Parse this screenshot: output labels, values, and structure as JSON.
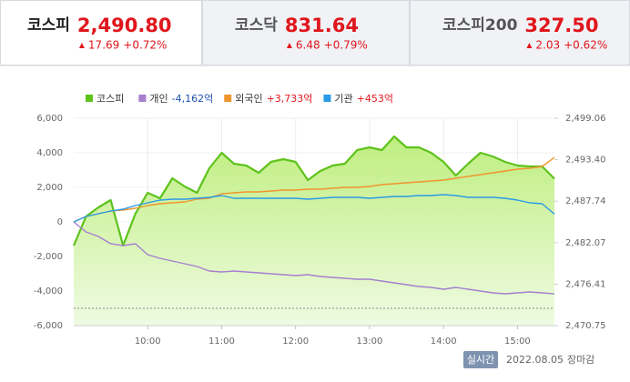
{
  "tabs": [
    {
      "name": "코스피",
      "value": "2,490.80",
      "change": "17.69",
      "rate": "+0.72%"
    },
    {
      "name": "코스닥",
      "value": "831.64",
      "change": "6.48",
      "rate": "+0.79%"
    },
    {
      "name": "코스피200",
      "value": "327.50",
      "change": "2.03",
      "rate": "+0.62%"
    }
  ],
  "chart_data": {
    "type": "line",
    "x": [
      "09:00",
      "09:10",
      "09:20",
      "09:30",
      "09:40",
      "09:50",
      "10:00",
      "10:10",
      "10:20",
      "10:30",
      "10:40",
      "10:50",
      "11:00",
      "11:10",
      "11:20",
      "11:30",
      "11:40",
      "11:50",
      "12:00",
      "12:10",
      "12:20",
      "12:30",
      "12:40",
      "12:50",
      "13:00",
      "13:10",
      "13:20",
      "13:30",
      "13:40",
      "13:50",
      "14:00",
      "14:10",
      "14:20",
      "14:30",
      "14:40",
      "14:50",
      "15:00",
      "15:10",
      "15:20",
      "15:30"
    ],
    "xlim": [
      "09:00",
      "15:30"
    ],
    "xticks": [
      "10:00",
      "11:00",
      "12:00",
      "13:00",
      "14:00",
      "15:00"
    ],
    "ylim": [
      -6000,
      6000
    ],
    "yticks": [
      {
        "value": -6000,
        "label": "-6,000"
      },
      {
        "value": -4000,
        "label": "-4,000"
      },
      {
        "value": -2000,
        "label": "-2,000"
      },
      0,
      {
        "value": 2000,
        "label": "2,000"
      },
      {
        "value": 4000,
        "label": "4,000"
      },
      {
        "value": 6000,
        "label": "6,000"
      }
    ],
    "y2lim": [
      2470.75,
      2499.06
    ],
    "y2ticks": [
      {
        "value": 2470.75,
        "label": "2,470.75"
      },
      {
        "value": 2476.41,
        "label": "2,476.41"
      },
      {
        "value": 2482.07,
        "label": "2,482.07"
      },
      {
        "value": 2487.74,
        "label": "2,487.74"
      },
      {
        "value": 2493.4,
        "label": "2,493.40"
      },
      {
        "value": 2499.06,
        "label": "2,499.06"
      }
    ],
    "y2_reference": 2473.11,
    "grid": true,
    "series": [
      {
        "name": "코스피",
        "color": "#5ec21c",
        "axis": "y2",
        "values": [
          2481.68,
          2485.65,
          2486.89,
          2487.88,
          2481.68,
          2486.02,
          2488.88,
          2488.13,
          2490.86,
          2489.75,
          2488.88,
          2492.23,
          2494.34,
          2492.85,
          2492.6,
          2491.61,
          2493.1,
          2493.47,
          2493.1,
          2490.62,
          2491.86,
          2492.6,
          2492.85,
          2494.71,
          2495.09,
          2494.71,
          2496.58,
          2495.09,
          2495.09,
          2494.34,
          2493.1,
          2491.24,
          2492.85,
          2494.34,
          2493.84,
          2493.1,
          2492.6,
          2492.48,
          2492.48,
          2490.8
        ]
      },
      {
        "name": "개인",
        "color": "#a67fcf",
        "legend_label": "-4,162억",
        "values": [
          0,
          -579,
          -842,
          -1263,
          -1368,
          -1263,
          -1895,
          -2105,
          -2263,
          -2421,
          -2579,
          -2842,
          -2895,
          -2842,
          -2895,
          -2947,
          -3000,
          -3053,
          -3105,
          -3053,
          -3158,
          -3210,
          -3263,
          -3316,
          -3316,
          -3421,
          -3526,
          -3631,
          -3737,
          -3789,
          -3895,
          -3789,
          -3895,
          -4000,
          -4105,
          -4158,
          -4105,
          -4053,
          -4105,
          -4162
        ]
      },
      {
        "name": "외국인",
        "color": "#f0952e",
        "legend_label": "+3,733억",
        "values": [
          0,
          316,
          474,
          632,
          684,
          789,
          947,
          1053,
          1105,
          1158,
          1316,
          1368,
          1632,
          1684,
          1737,
          1737,
          1789,
          1842,
          1842,
          1895,
          1895,
          1947,
          2000,
          2000,
          2053,
          2158,
          2211,
          2263,
          2316,
          2368,
          2421,
          2526,
          2632,
          2737,
          2842,
          2947,
          3053,
          3105,
          3210,
          3733
        ]
      },
      {
        "name": "기관",
        "color": "#2a9be6",
        "legend_label": "+453억",
        "values": [
          0,
          316,
          474,
          632,
          737,
          947,
          1105,
          1263,
          1316,
          1316,
          1368,
          1421,
          1526,
          1368,
          1368,
          1368,
          1368,
          1368,
          1368,
          1316,
          1368,
          1421,
          1421,
          1421,
          1368,
          1421,
          1474,
          1474,
          1526,
          1526,
          1579,
          1526,
          1421,
          1421,
          1421,
          1368,
          1263,
          1105,
          1053,
          453
        ]
      }
    ]
  },
  "footer": {
    "button": "실시간",
    "date": "2022.08.05",
    "status": "장마감"
  }
}
